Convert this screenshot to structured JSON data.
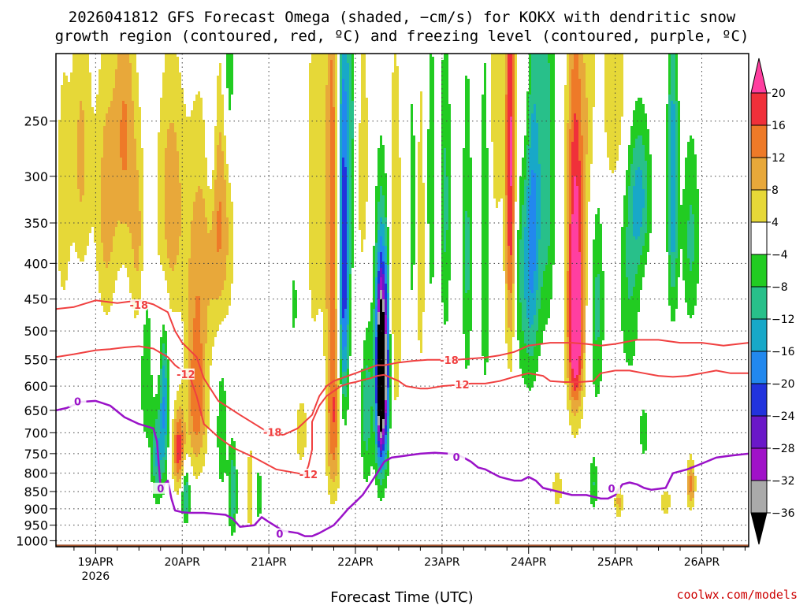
{
  "title_line1": "2026041812 GFS Forecast Omega (shaded, −cm/s) for KOKX with dendritic snow",
  "title_line2": "growth region (contoured, red, ºC) and freezing level (contoured, purple, ºC)",
  "credit": "coolwx.com/models",
  "chart_data": {
    "type": "heatmap",
    "title": "2026041812 GFS Forecast Omega (shaded, −cm/s) for KOKX with dendritic snow growth region (contoured, red, ºC) and freezing level (contoured, purple, ºC)",
    "xlabel": "Forecast Time (UTC)",
    "ylabel": "",
    "x_axis_hours": [
      -11,
      181
    ],
    "x_ticks": [
      {
        "hour": 0,
        "label": "19APR",
        "sublabel": "2026"
      },
      {
        "hour": 24,
        "label": "20APR"
      },
      {
        "hour": 48,
        "label": "21APR"
      },
      {
        "hour": 72,
        "label": "22APR"
      },
      {
        "hour": 96,
        "label": "23APR"
      },
      {
        "hour": 120,
        "label": "24APR"
      },
      {
        "hour": 144,
        "label": "25APR"
      },
      {
        "hour": 168,
        "label": "26APR"
      }
    ],
    "y_axis_hpa": [
      200,
      1020
    ],
    "y_ticks": [
      250,
      300,
      350,
      400,
      450,
      500,
      550,
      600,
      650,
      700,
      750,
      800,
      850,
      900,
      950,
      1000
    ],
    "y_tick_labels": [
      "250",
      "300",
      "350",
      "400",
      "450",
      "500",
      "550",
      "600",
      "650",
      "700",
      "750",
      "800",
      "850",
      "900",
      "950",
      "1000"
    ],
    "grid": true,
    "colorbar": {
      "labels": [
        "20",
        "16",
        "12",
        "8",
        "4",
        "−4",
        "−8",
        "−12",
        "−16",
        "−20",
        "−24",
        "−28",
        "−32",
        "−36"
      ],
      "bins": [
        {
          "lo": 20,
          "hi": 99,
          "color": "#ff3fa0"
        },
        {
          "lo": 16,
          "hi": 20,
          "color": "#f0303a"
        },
        {
          "lo": 12,
          "hi": 16,
          "color": "#ee7a28"
        },
        {
          "lo": 8,
          "hi": 12,
          "color": "#e8a83a"
        },
        {
          "lo": 4,
          "hi": 8,
          "color": "#e6d838"
        },
        {
          "lo": -4,
          "hi": 4,
          "color": "#ffffff"
        },
        {
          "lo": -8,
          "hi": -4,
          "color": "#22cc22"
        },
        {
          "lo": -12,
          "hi": -8,
          "color": "#28c08a"
        },
        {
          "lo": -16,
          "hi": -12,
          "color": "#18a8c8"
        },
        {
          "lo": -20,
          "hi": -16,
          "color": "#2288ee"
        },
        {
          "lo": -24,
          "hi": -20,
          "color": "#2233dd"
        },
        {
          "lo": -28,
          "hi": -24,
          "color": "#6a18c8"
        },
        {
          "lo": -32,
          "hi": -28,
          "color": "#a012c8"
        },
        {
          "lo": -36,
          "hi": -32,
          "color": "#aaaaaa"
        },
        {
          "lo": -99,
          "hi": -36,
          "color": "#000000"
        }
      ]
    },
    "omega_blobs": [
      {
        "t": -9,
        "p": 330,
        "dt": 2,
        "dp": 140,
        "v": 7
      },
      {
        "t": -4,
        "p": 280,
        "dt": 3,
        "dp": 130,
        "v": 9
      },
      {
        "t": 3,
        "p": 330,
        "dt": 3,
        "dp": 150,
        "v": 10
      },
      {
        "t": 8,
        "p": 260,
        "dt": 3,
        "dp": 120,
        "v": 12
      },
      {
        "t": 12,
        "p": 380,
        "dt": 2.5,
        "dp": 130,
        "v": 9
      },
      {
        "t": 14,
        "p": 540,
        "dt": 1.8,
        "dp": 200,
        "v": -8
      },
      {
        "t": 17,
        "p": 760,
        "dt": 1.5,
        "dp": 120,
        "v": -12
      },
      {
        "t": 19,
        "p": 640,
        "dt": 1.2,
        "dp": 160,
        "v": -16
      },
      {
        "t": 21,
        "p": 330,
        "dt": 4,
        "dp": 140,
        "v": 11
      },
      {
        "t": 23,
        "p": 740,
        "dt": 1.6,
        "dp": 100,
        "v": 18
      },
      {
        "t": 25,
        "p": 860,
        "dt": 1.2,
        "dp": 80,
        "v": -14
      },
      {
        "t": 28,
        "p": 440,
        "dt": 3,
        "dp": 200,
        "v": 9
      },
      {
        "t": 28,
        "p": 650,
        "dt": 3,
        "dp": 150,
        "v": 12
      },
      {
        "t": 32,
        "p": 250,
        "dt": 1.5,
        "dp": 110,
        "v": -9
      },
      {
        "t": 34,
        "p": 350,
        "dt": 4,
        "dp": 150,
        "v": 13
      },
      {
        "t": 35,
        "p": 690,
        "dt": 1.5,
        "dp": 160,
        "v": -8
      },
      {
        "t": 37,
        "p": 200,
        "dt": 1.5,
        "dp": 90,
        "v": -10
      },
      {
        "t": 38,
        "p": 850,
        "dt": 1.2,
        "dp": 130,
        "v": -12
      },
      {
        "t": 43,
        "p": 850,
        "dt": 1.5,
        "dp": 150,
        "v": 7
      },
      {
        "t": 45,
        "p": 860,
        "dt": 1.2,
        "dp": 90,
        "v": -8
      },
      {
        "t": 55,
        "p": 460,
        "dt": 1,
        "dp": 60,
        "v": -6
      },
      {
        "t": 57,
        "p": 700,
        "dt": 2,
        "dp": 100,
        "v": 6
      },
      {
        "t": 61,
        "p": 330,
        "dt": 2.5,
        "dp": 300,
        "v": 7
      },
      {
        "t": 62,
        "p": 660,
        "dt": 2,
        "dp": 170,
        "v": -6
      },
      {
        "t": 66,
        "p": 330,
        "dt": 2.3,
        "dp": 360,
        "v": 15
      },
      {
        "t": 66,
        "p": 690,
        "dt": 2.5,
        "dp": 170,
        "v": 11
      },
      {
        "t": 68,
        "p": 310,
        "dt": 1.5,
        "dp": 360,
        "v": -13
      },
      {
        "t": 69,
        "p": 410,
        "dt": 1.4,
        "dp": 240,
        "v": -18
      },
      {
        "t": 71,
        "p": 250,
        "dt": 1.5,
        "dp": 170,
        "v": -9
      },
      {
        "t": 74,
        "p": 300,
        "dt": 2.5,
        "dp": 180,
        "v": 6
      },
      {
        "t": 75,
        "p": 650,
        "dt": 1.5,
        "dp": 180,
        "v": -10
      },
      {
        "t": 79,
        "p": 560,
        "dt": 2.2,
        "dp": 230,
        "v": -18
      },
      {
        "t": 79,
        "p": 580,
        "dt": 1,
        "dp": 160,
        "v": -38
      },
      {
        "t": 80.5,
        "p": 560,
        "dt": 1.1,
        "dp": 170,
        "v": -20
      },
      {
        "t": 83,
        "p": 420,
        "dt": 2,
        "dp": 280,
        "v": 8
      },
      {
        "t": 88,
        "p": 340,
        "dt": 1.2,
        "dp": 170,
        "v": -7
      },
      {
        "t": 90,
        "p": 380,
        "dt": 1.5,
        "dp": 220,
        "v": 7
      },
      {
        "t": 93,
        "p": 310,
        "dt": 1.2,
        "dp": 150,
        "v": -8
      },
      {
        "t": 97,
        "p": 330,
        "dt": 1.5,
        "dp": 180,
        "v": -9
      },
      {
        "t": 103,
        "p": 390,
        "dt": 1.4,
        "dp": 200,
        "v": -9
      },
      {
        "t": 108,
        "p": 380,
        "dt": 1.5,
        "dp": 240,
        "v": -8
      },
      {
        "t": 111,
        "p": 220,
        "dt": 2,
        "dp": 140,
        "v": 8
      },
      {
        "t": 115,
        "p": 290,
        "dt": 1.5,
        "dp": 230,
        "v": 22
      },
      {
        "t": 118,
        "p": 390,
        "dt": 2.5,
        "dp": 200,
        "v": -8
      },
      {
        "t": 119,
        "p": 220,
        "dt": 2,
        "dp": 120,
        "v": 8
      },
      {
        "t": 121,
        "p": 350,
        "dt": 2.2,
        "dp": 200,
        "v": -17
      },
      {
        "t": 125,
        "p": 290,
        "dt": 2.5,
        "dp": 200,
        "v": -10
      },
      {
        "t": 133,
        "p": 380,
        "dt": 2.5,
        "dp": 240,
        "v": 22
      },
      {
        "t": 133,
        "p": 520,
        "dt": 2,
        "dp": 110,
        "v": 13
      },
      {
        "t": 137,
        "p": 240,
        "dt": 2,
        "dp": 110,
        "v": 6
      },
      {
        "t": 139,
        "p": 460,
        "dt": 2,
        "dp": 180,
        "v": -9
      },
      {
        "t": 144,
        "p": 230,
        "dt": 4,
        "dp": 90,
        "v": 8
      },
      {
        "t": 148,
        "p": 420,
        "dt": 3,
        "dp": 170,
        "v": -8
      },
      {
        "t": 151,
        "p": 320,
        "dt": 3,
        "dp": 80,
        "v": -12
      },
      {
        "t": 160,
        "p": 310,
        "dt": 1.5,
        "dp": 150,
        "v": -16
      },
      {
        "t": 165,
        "p": 370,
        "dt": 2.5,
        "dp": 120,
        "v": -9
      },
      {
        "t": 145,
        "p": 880,
        "dt": 1.2,
        "dp": 50,
        "v": 9
      },
      {
        "t": 152,
        "p": 700,
        "dt": 1.5,
        "dp": 80,
        "v": -6
      },
      {
        "t": 158,
        "p": 880,
        "dt": 2,
        "dp": 50,
        "v": 6
      },
      {
        "t": 165,
        "p": 830,
        "dt": 1.2,
        "dp": 70,
        "v": 13
      },
      {
        "t": 128,
        "p": 840,
        "dt": 1.5,
        "dp": 60,
        "v": 7
      },
      {
        "t": 138,
        "p": 830,
        "dt": 1.2,
        "dp": 80,
        "v": -8
      }
    ],
    "dgz_lines": [
      {
        "label": "-18",
        "label_at": {
          "hour": 12,
          "hpa": 460
        },
        "x": [
          -11,
          -6,
          0,
          6,
          12,
          16,
          20,
          22,
          24,
          28,
          30,
          34,
          40,
          48,
          52
        ],
        "y": [
          465,
          462,
          452,
          456,
          452,
          458,
          470,
          500,
          520,
          545,
          585,
          630,
          660,
          700,
          705
        ]
      },
      {
        "label": "-18",
        "label_at": {
          "hour": 49,
          "hpa": 700
        },
        "x": [
          52,
          56,
          60,
          62,
          64,
          66,
          68,
          70,
          72,
          76,
          78,
          80
        ],
        "y": [
          705,
          690,
          660,
          620,
          600,
          590,
          585,
          580,
          575,
          565,
          560,
          560
        ]
      },
      {
        "label": "-18",
        "label_at": {
          "hour": 98,
          "hpa": 552
        },
        "x": [
          80,
          84,
          88,
          92,
          96,
          100,
          104,
          108,
          112,
          116,
          120,
          126,
          132,
          136,
          140,
          144,
          150,
          156,
          162,
          168,
          174,
          181
        ],
        "y": [
          560,
          555,
          552,
          550,
          550,
          550,
          548,
          546,
          542,
          536,
          525,
          520,
          520,
          522,
          525,
          522,
          515,
          515,
          520,
          520,
          525,
          520
        ]
      },
      {
        "label": "-12",
        "label_at": {
          "hour": 25,
          "hpa": 578
        },
        "x": [
          -11,
          -6,
          0,
          4,
          8,
          12,
          16,
          20,
          22,
          24,
          26,
          28,
          30,
          34,
          38,
          44,
          50,
          56,
          58
        ],
        "y": [
          545,
          540,
          533,
          531,
          528,
          526,
          530,
          545,
          560,
          570,
          580,
          620,
          680,
          710,
          735,
          760,
          790,
          800,
          805
        ]
      },
      {
        "label": "-12",
        "label_at": {
          "hour": 59,
          "hpa": 805
        },
        "x": [
          58,
          59,
          60,
          60,
          60,
          62,
          64,
          66,
          68,
          70,
          72,
          74,
          76,
          78,
          80
        ],
        "y": [
          805,
          780,
          740,
          700,
          675,
          640,
          620,
          610,
          600,
          595,
          592,
          588,
          585,
          580,
          578
        ]
      },
      {
        "label": "-12",
        "label_at": {
          "hour": 101,
          "hpa": 598
        },
        "x": [
          80,
          84,
          86,
          90,
          92,
          96,
          100,
          104,
          108,
          112,
          116,
          120,
          124,
          126,
          130,
          134,
          138,
          140,
          144,
          148,
          152,
          156,
          160,
          164,
          168,
          172,
          176,
          181
        ],
        "y": [
          578,
          590,
          600,
          605,
          605,
          600,
          598,
          595,
          595,
          590,
          582,
          575,
          580,
          590,
          592,
          592,
          590,
          575,
          570,
          570,
          575,
          580,
          582,
          580,
          575,
          570,
          575,
          575
        ]
      }
    ],
    "freezing_level": {
      "label": "0",
      "label_at": [
        {
          "hour": -5,
          "hpa": 633
        },
        {
          "hour": 18,
          "hpa": 843
        },
        {
          "hour": 51,
          "hpa": 980
        },
        {
          "hour": 100,
          "hpa": 760
        },
        {
          "hour": 143,
          "hpa": 843
        }
      ],
      "x": [
        -11,
        -8,
        -4,
        0,
        4,
        8,
        12,
        16,
        17,
        18,
        19,
        20,
        21,
        22,
        24,
        26,
        30,
        36,
        38,
        40,
        44,
        46,
        48,
        52,
        56,
        58,
        60,
        62,
        66,
        68,
        70,
        72,
        74,
        76,
        78,
        80,
        82,
        86,
        90,
        94,
        98,
        100,
        102,
        104,
        106,
        108,
        110,
        112,
        114,
        116,
        118,
        120,
        122,
        124,
        128,
        132,
        136,
        140,
        142,
        144,
        146,
        148,
        150,
        152,
        154,
        158,
        160,
        164,
        168,
        172,
        176,
        181
      ],
      "y": [
        650,
        645,
        632,
        630,
        640,
        665,
        680,
        690,
        720,
        840,
        830,
        820,
        870,
        905,
        910,
        912,
        912,
        918,
        930,
        955,
        950,
        925,
        940,
        968,
        975,
        985,
        985,
        975,
        950,
        925,
        900,
        880,
        860,
        830,
        800,
        770,
        760,
        755,
        750,
        748,
        750,
        752,
        760,
        770,
        785,
        790,
        800,
        810,
        815,
        820,
        820,
        810,
        820,
        840,
        850,
        860,
        860,
        870,
        870,
        860,
        830,
        825,
        830,
        840,
        845,
        840,
        800,
        790,
        775,
        760,
        755,
        750
      ]
    },
    "ground": {
      "base_hpa": 1013,
      "color": "#a0522d"
    }
  }
}
